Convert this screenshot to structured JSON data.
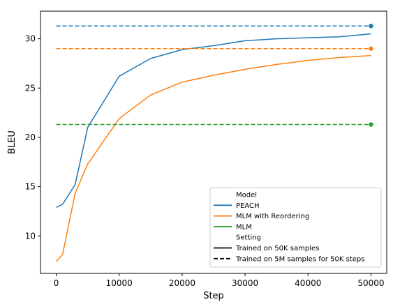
{
  "chart_data": {
    "type": "line",
    "xlabel": "Step",
    "ylabel": "BLEU",
    "xlim": [
      -2500,
      52500
    ],
    "ylim": [
      6.2,
      32.8
    ],
    "xticks": [
      0,
      10000,
      20000,
      30000,
      40000,
      50000
    ],
    "xtick_labels": [
      "0",
      "10000",
      "20000",
      "30000",
      "40000",
      "50000"
    ],
    "yticks": [
      10,
      15,
      20,
      25,
      30
    ],
    "ytick_labels": [
      "10",
      "15",
      "20",
      "25",
      "30"
    ],
    "grid": false,
    "legend_position": "lower-right",
    "series": [
      {
        "name": "PEACH",
        "setting": "Trained on 50K samples",
        "color": "#1f77b4",
        "dash": "solid",
        "x": [
          0,
          1000,
          3000,
          5000,
          10000,
          15000,
          20000,
          25000,
          30000,
          35000,
          40000,
          45000,
          50000
        ],
        "y": [
          12.9,
          13.2,
          15.2,
          21.0,
          26.2,
          28.0,
          28.9,
          29.3,
          29.8,
          30.0,
          30.1,
          30.2,
          30.5
        ]
      },
      {
        "name": "MLM with Reordering",
        "setting": "Trained on 50K samples",
        "color": "#ff7f0e",
        "dash": "solid",
        "x": [
          0,
          1000,
          3000,
          5000,
          10000,
          15000,
          20000,
          25000,
          30000,
          35000,
          40000,
          45000,
          50000
        ],
        "y": [
          7.4,
          8.1,
          14.3,
          17.3,
          21.9,
          24.3,
          25.6,
          26.3,
          26.9,
          27.4,
          27.8,
          28.1,
          28.3
        ]
      },
      {
        "name": "PEACH",
        "setting": "Trained on 5M samples for 50K steps",
        "color": "#1f77b4",
        "dash": "dashed",
        "x": [
          0,
          50000
        ],
        "y": [
          31.3,
          31.3
        ]
      },
      {
        "name": "MLM with Reordering",
        "setting": "Trained on 5M samples for 50K steps",
        "color": "#ff7f0e",
        "dash": "dashed",
        "x": [
          0,
          50000
        ],
        "y": [
          29.0,
          29.0
        ]
      },
      {
        "name": "MLM",
        "setting": "Trained on 5M samples for 50K steps",
        "color": "#2ca02c",
        "dash": "dashed",
        "x": [
          0,
          50000
        ],
        "y": [
          21.3,
          21.3
        ]
      }
    ],
    "end_markers": [
      {
        "x": 50000,
        "y": 31.3,
        "color": "#1f77b4"
      },
      {
        "x": 50000,
        "y": 29.0,
        "color": "#ff7f0e"
      },
      {
        "x": 50000,
        "y": 21.3,
        "color": "#2ca02c"
      }
    ],
    "legend": {
      "entries": [
        {
          "label": "Model",
          "kind": "header"
        },
        {
          "label": "PEACH",
          "kind": "line",
          "color": "#1f77b4",
          "dash": "solid"
        },
        {
          "label": "MLM with Reordering",
          "kind": "line",
          "color": "#ff7f0e",
          "dash": "solid"
        },
        {
          "label": "MLM",
          "kind": "line",
          "color": "#2ca02c",
          "dash": "solid"
        },
        {
          "label": "Setting",
          "kind": "header"
        },
        {
          "label": "Trained on 50K samples",
          "kind": "line",
          "color": "#000000",
          "dash": "solid"
        },
        {
          "label": "Trained on 5M samples for 50K steps",
          "kind": "line",
          "color": "#000000",
          "dash": "dashed"
        }
      ]
    }
  }
}
